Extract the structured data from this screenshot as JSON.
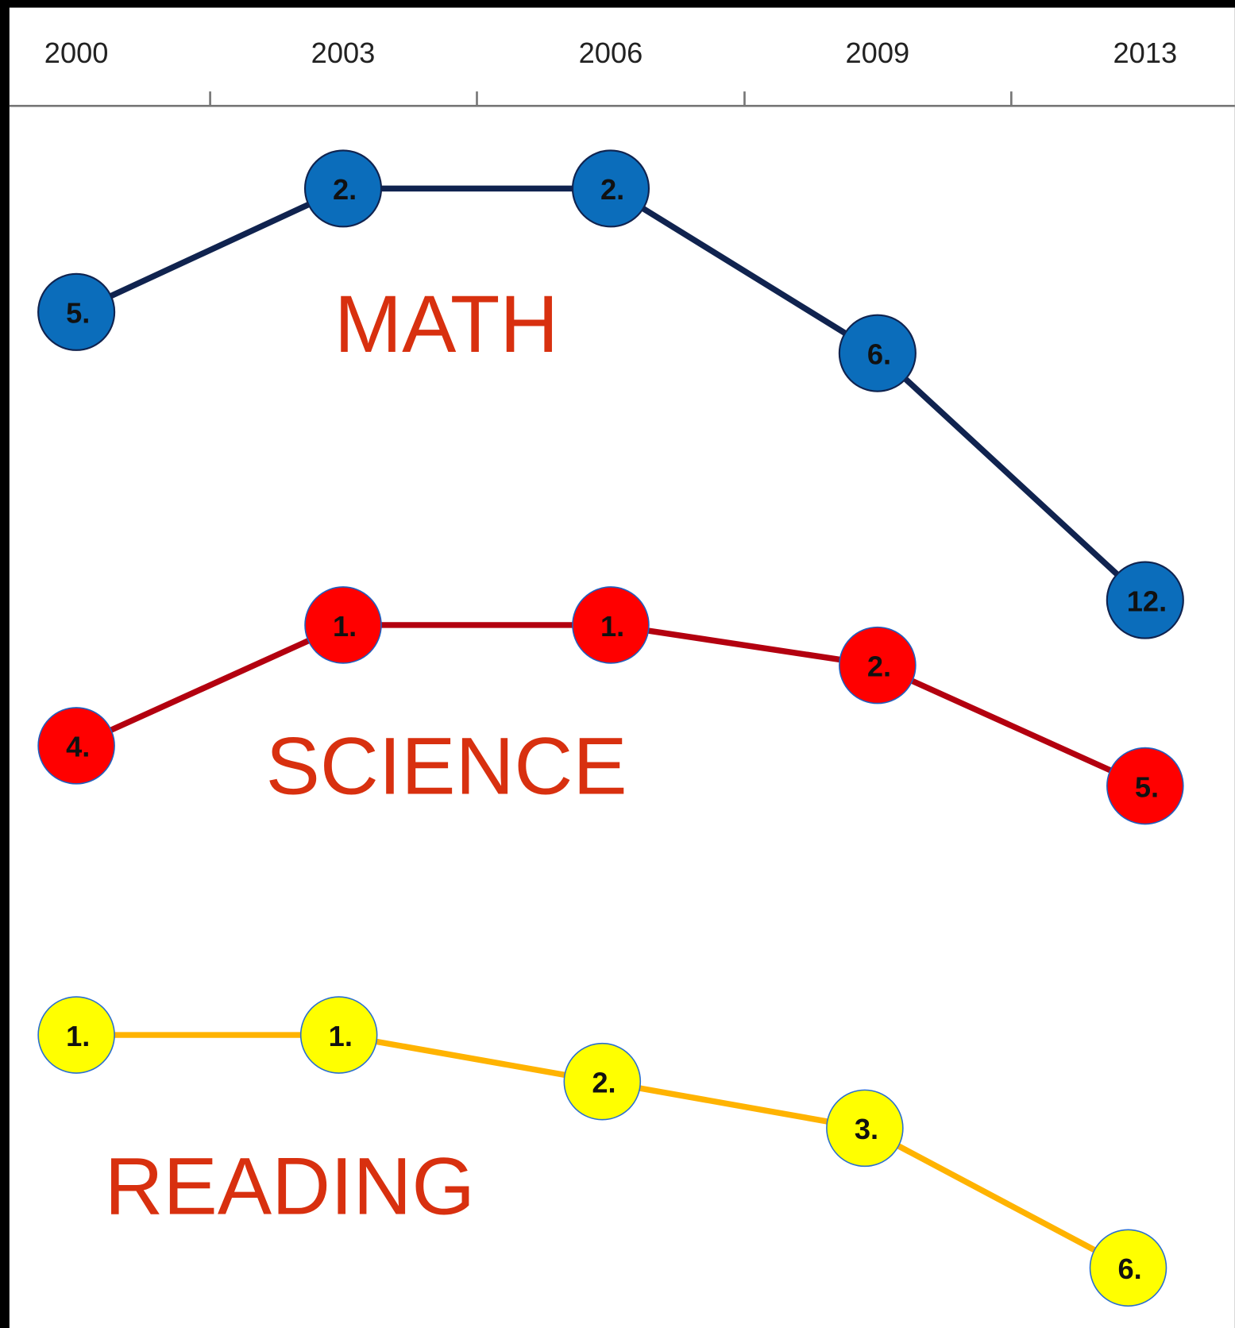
{
  "chart_data": {
    "type": "line",
    "categories": [
      "2000",
      "2003",
      "2006",
      "2009",
      "2013"
    ],
    "series": [
      {
        "name": "MATH",
        "color": "#10234f",
        "marker_color": "#0b6dbb",
        "values": [
          5,
          2,
          2,
          6,
          12
        ],
        "value_labels": [
          "5.",
          "2.",
          "2.",
          "6.",
          "12."
        ]
      },
      {
        "name": "SCIENCE",
        "color": "#b3000f",
        "marker_color": "#ff0000",
        "values": [
          4,
          1,
          1,
          2,
          5
        ],
        "value_labels": [
          "4.",
          "1.",
          "1.",
          "2.",
          "5."
        ]
      },
      {
        "name": "READING",
        "color": "#ffb300",
        "marker_color": "#ffff00",
        "values": [
          1,
          1,
          2,
          3,
          6
        ],
        "value_labels": [
          "1.",
          "1.",
          "2.",
          "3.",
          "6."
        ]
      }
    ],
    "label_color": "#d8300f"
  }
}
